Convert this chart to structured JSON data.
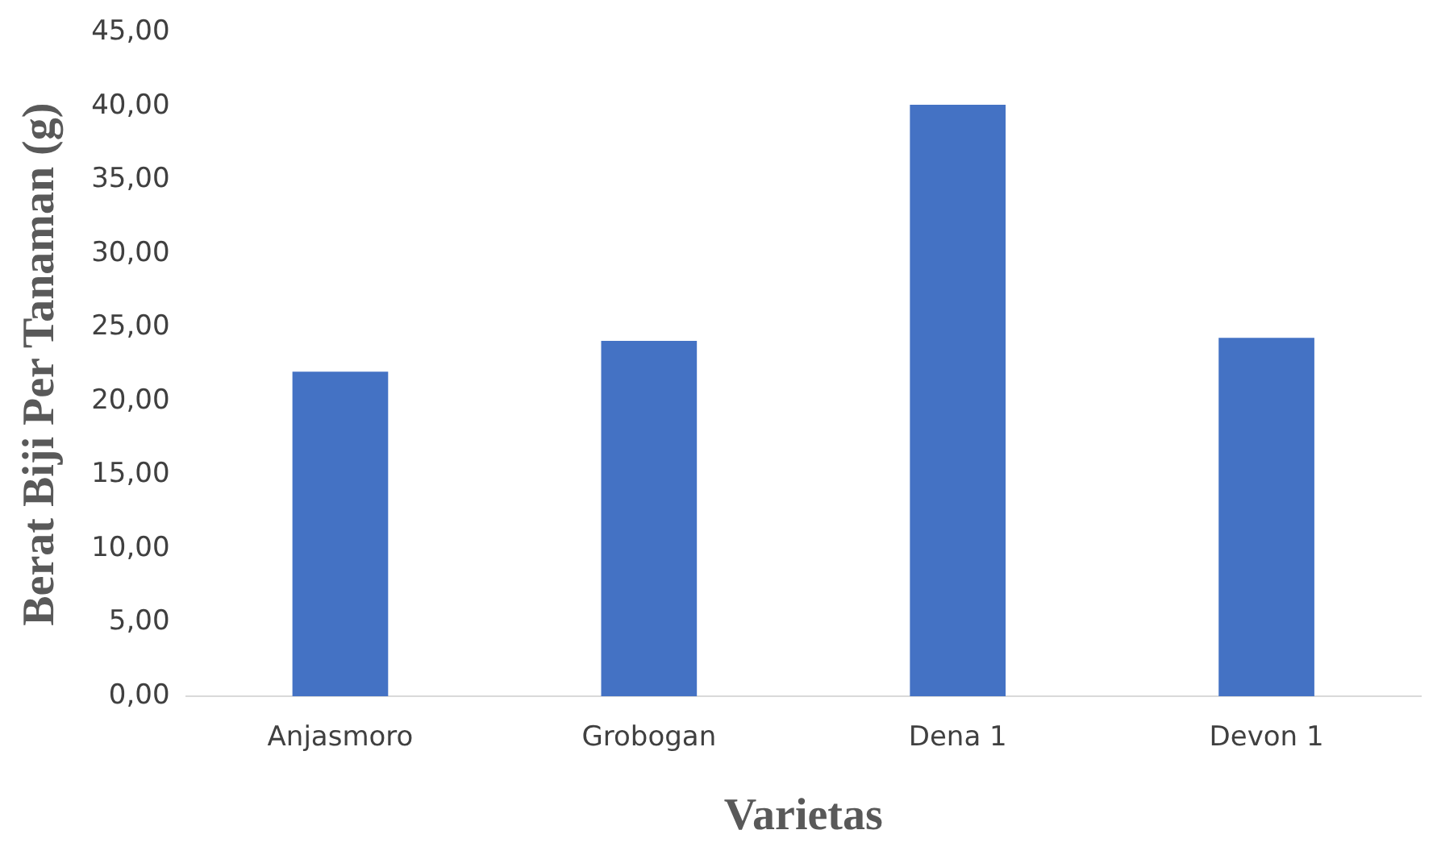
{
  "chart_data": {
    "type": "bar",
    "xlabel": "Varietas",
    "ylabel": "Berat Biji Per Tanaman (g)",
    "categories": [
      "Anjasmoro",
      "Grobogan",
      "Dena 1",
      "Devon 1"
    ],
    "values": [
      22.0,
      24.1,
      40.1,
      24.3
    ],
    "color": "#4472c4",
    "ylim": [
      0,
      45
    ],
    "yticks": [
      {
        "value": 0,
        "label": "0,00"
      },
      {
        "value": 5,
        "label": "5,00"
      },
      {
        "value": 10,
        "label": "10,00"
      },
      {
        "value": 15,
        "label": "15,00"
      },
      {
        "value": 20,
        "label": "20,00"
      },
      {
        "value": 25,
        "label": "25,00"
      },
      {
        "value": 30,
        "label": "30,00"
      },
      {
        "value": 35,
        "label": "35,00"
      },
      {
        "value": 40,
        "label": "40,00"
      },
      {
        "value": 45,
        "label": "45,00"
      }
    ],
    "grid": false,
    "legend": false
  }
}
